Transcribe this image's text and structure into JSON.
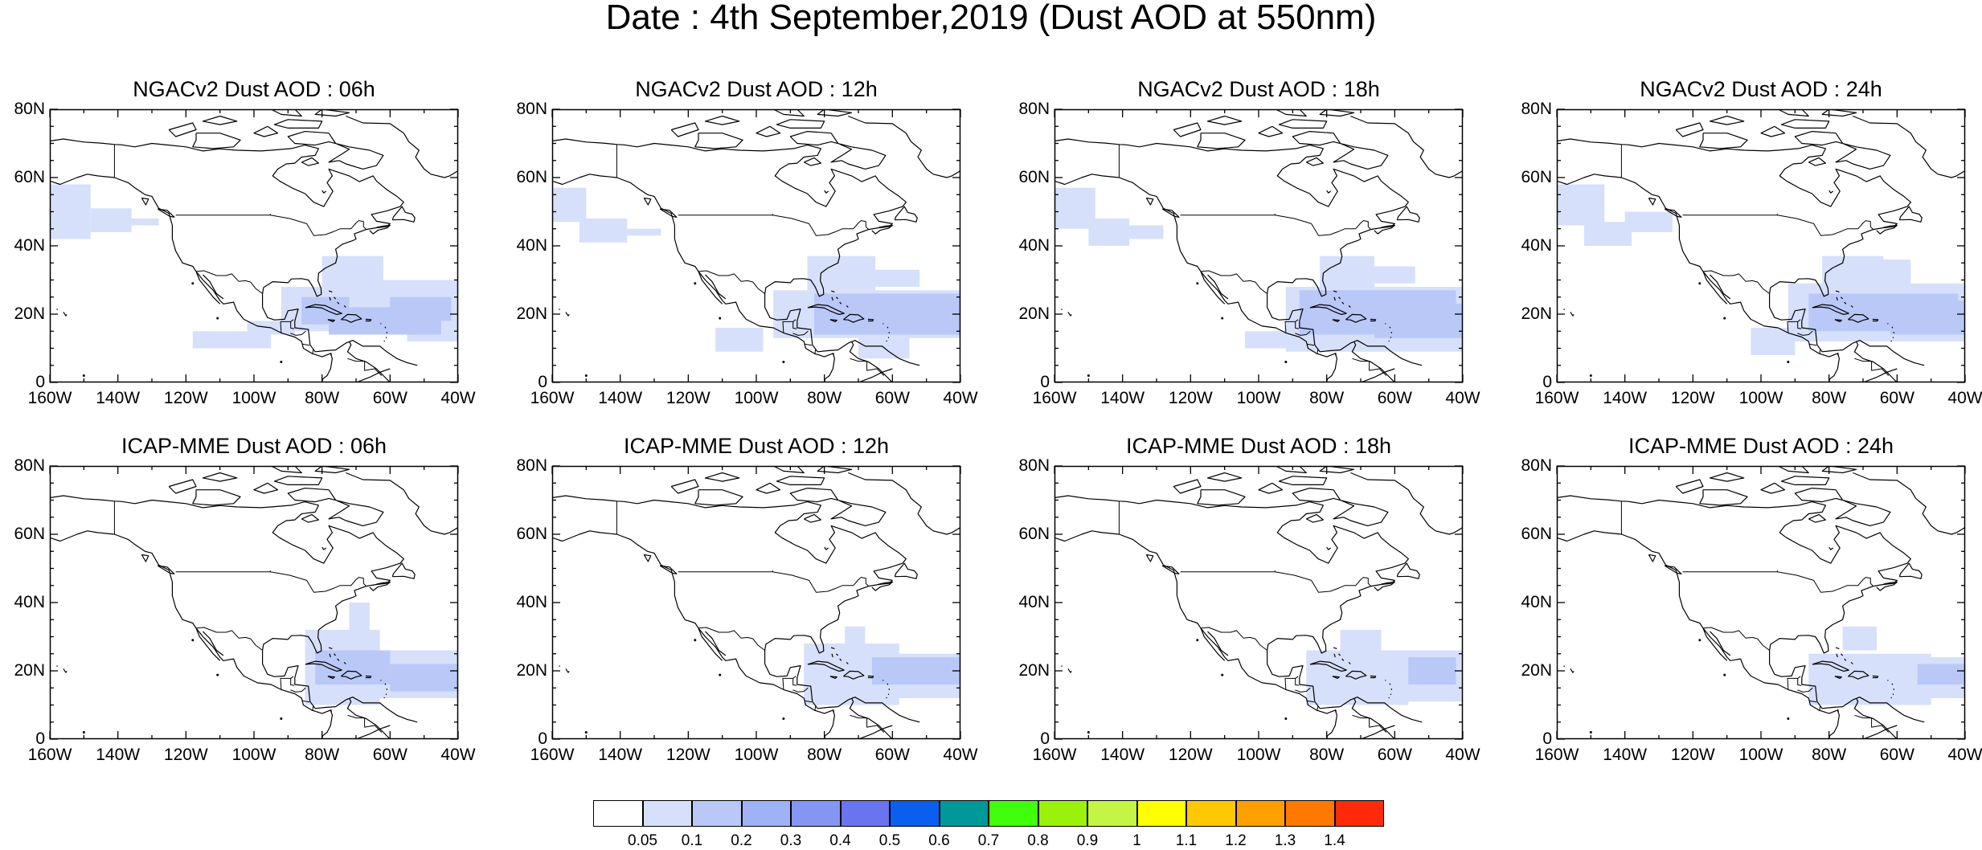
{
  "title": "Date : 4th September,2019 (Dust AOD at 550nm)",
  "lat_labels": [
    "80N",
    "60N",
    "40N",
    "20N",
    "0"
  ],
  "lon_labels": [
    "160W",
    "140W",
    "120W",
    "100W",
    "80W",
    "60W",
    "40W"
  ],
  "panels": [
    {
      "title": "NGACv2 Dust AOD : 06h",
      "model": "NGACv2",
      "hour": "06h"
    },
    {
      "title": "NGACv2 Dust AOD : 12h",
      "model": "NGACv2",
      "hour": "12h"
    },
    {
      "title": "NGACv2 Dust AOD : 18h",
      "model": "NGACv2",
      "hour": "18h"
    },
    {
      "title": "NGACv2 Dust AOD : 24h",
      "model": "NGACv2",
      "hour": "24h"
    },
    {
      "title": "ICAP-MME Dust AOD : 06h",
      "model": "ICAP-MME",
      "hour": "06h"
    },
    {
      "title": "ICAP-MME Dust AOD : 12h",
      "model": "ICAP-MME",
      "hour": "12h"
    },
    {
      "title": "ICAP-MME Dust AOD : 18h",
      "model": "ICAP-MME",
      "hour": "18h"
    },
    {
      "title": "ICAP-MME Dust AOD : 24h",
      "model": "ICAP-MME",
      "hour": "24h"
    }
  ],
  "colorbar": {
    "labels": [
      "0.05",
      "0.1",
      "0.2",
      "0.3",
      "0.4",
      "0.5",
      "0.6",
      "0.7",
      "0.8",
      "0.9",
      "1",
      "1.1",
      "1.2",
      "1.3",
      "1.4"
    ],
    "colors": [
      "#ffffff",
      "#d6e0fa",
      "#b9c8f7",
      "#9fb2f5",
      "#8596f2",
      "#6a74ef",
      "#0a5ff0",
      "#00999a",
      "#40ff0a",
      "#9af20a",
      "#c4f544",
      "#ffff00",
      "#ffc800",
      "#ffa000",
      "#ff7800",
      "#ff2a0a"
    ]
  },
  "colors": {
    "dust_light": "#d6e0fa",
    "dust_medium": "#b9c8f7",
    "coast": "#000000"
  }
}
